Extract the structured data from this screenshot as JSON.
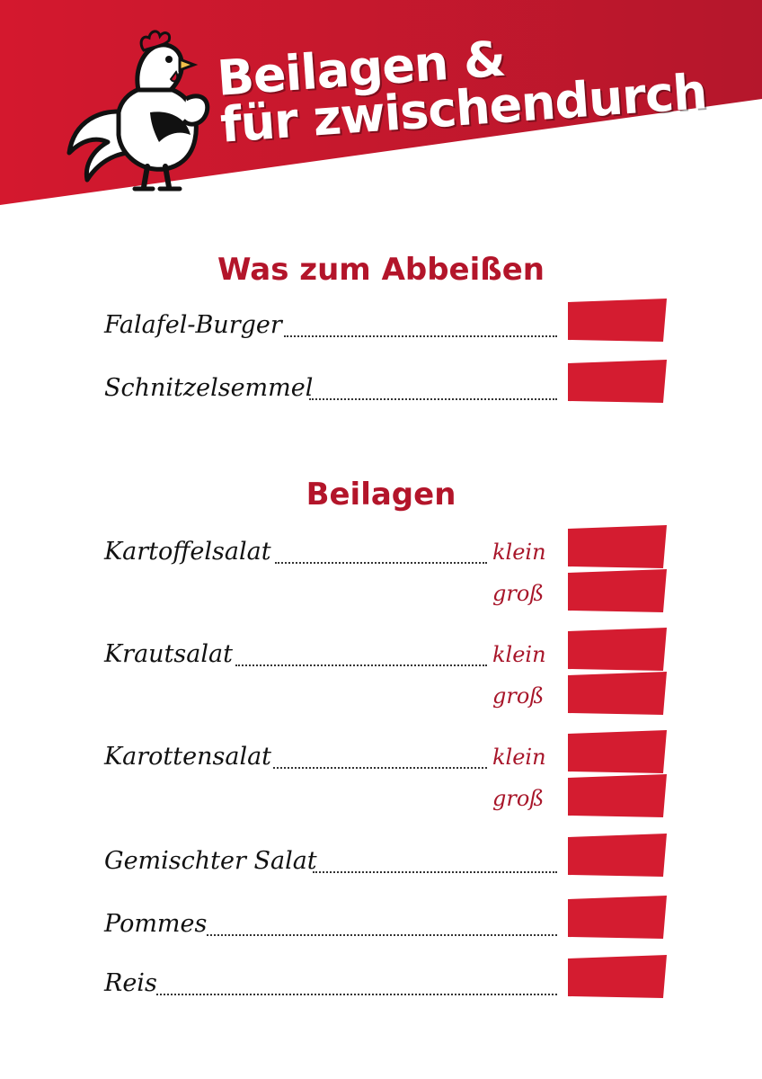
{
  "header": {
    "title_line1": "Beilagen &",
    "title_line2": "für zwischendurch"
  },
  "colors": {
    "brand_red": "#c8102e",
    "title_red": "#b3152a",
    "price_box": "#d41c30"
  },
  "sections": [
    {
      "title": "Was zum Abbeißen",
      "items": [
        {
          "name": "Falafel-Burger"
        },
        {
          "name": "Schnitzelsemmel"
        }
      ]
    },
    {
      "title": "Beilagen",
      "items": [
        {
          "name": "Kartoffelsalat",
          "sizes": [
            "klein",
            "groß"
          ]
        },
        {
          "name": "Krautsalat",
          "sizes": [
            "klein",
            "groß"
          ]
        },
        {
          "name": "Karottensalat",
          "sizes": [
            "klein",
            "groß"
          ]
        },
        {
          "name": "Gemischter Salat"
        },
        {
          "name": "Pommes"
        },
        {
          "name": "Reis"
        }
      ]
    }
  ]
}
